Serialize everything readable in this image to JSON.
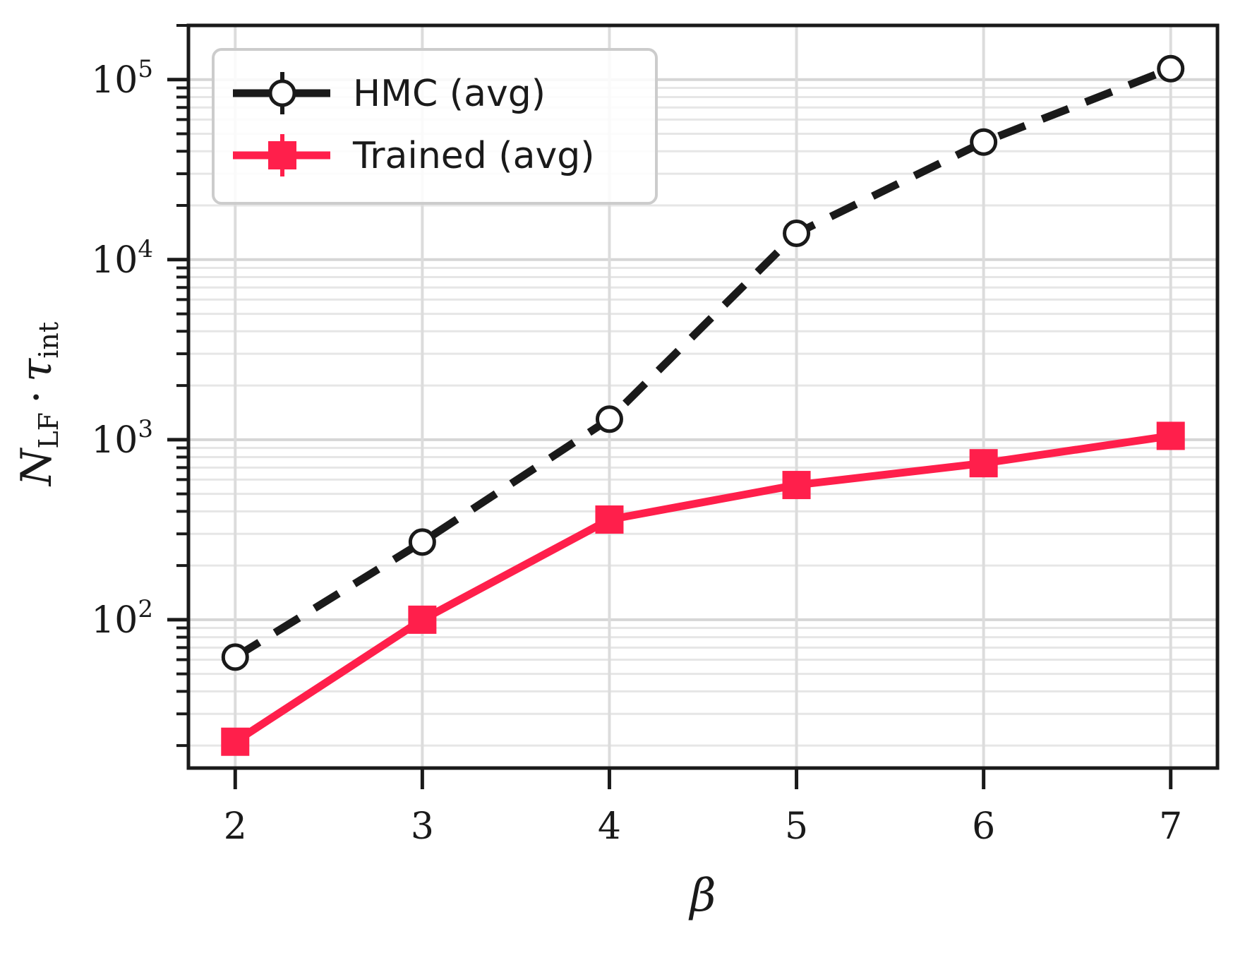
{
  "chart_data": {
    "type": "line",
    "title": "",
    "xlabel": "β",
    "ylabel": {
      "main": "N",
      "main_sub": "LF",
      "operator": "·",
      "second": "τ",
      "second_sub": "int"
    },
    "x": [
      2,
      3,
      4,
      5,
      6,
      7
    ],
    "xlim": [
      1.75,
      7.25
    ],
    "ylim": [
      15,
      200000
    ],
    "yscale": "log",
    "grid": true,
    "legend_position": "top-left",
    "x_ticks": [
      "2",
      "3",
      "4",
      "5",
      "6",
      "7"
    ],
    "y_ticks": [
      {
        "value": 100,
        "base": "10",
        "exp": "2"
      },
      {
        "value": 1000,
        "base": "10",
        "exp": "3"
      },
      {
        "value": 10000,
        "base": "10",
        "exp": "4"
      },
      {
        "value": 100000,
        "base": "10",
        "exp": "5"
      }
    ],
    "series": [
      {
        "name": "HMC (avg)",
        "color": "#1a1a1a",
        "line_style": "dashed",
        "marker": "open-circle",
        "values": [
          62,
          270,
          1300,
          14000,
          45000,
          115000
        ]
      },
      {
        "name": "Trained (avg)",
        "color": "#ff1f4b",
        "line_style": "solid",
        "marker": "filled-square",
        "values": [
          21,
          100,
          360,
          560,
          740,
          1050
        ]
      }
    ]
  }
}
